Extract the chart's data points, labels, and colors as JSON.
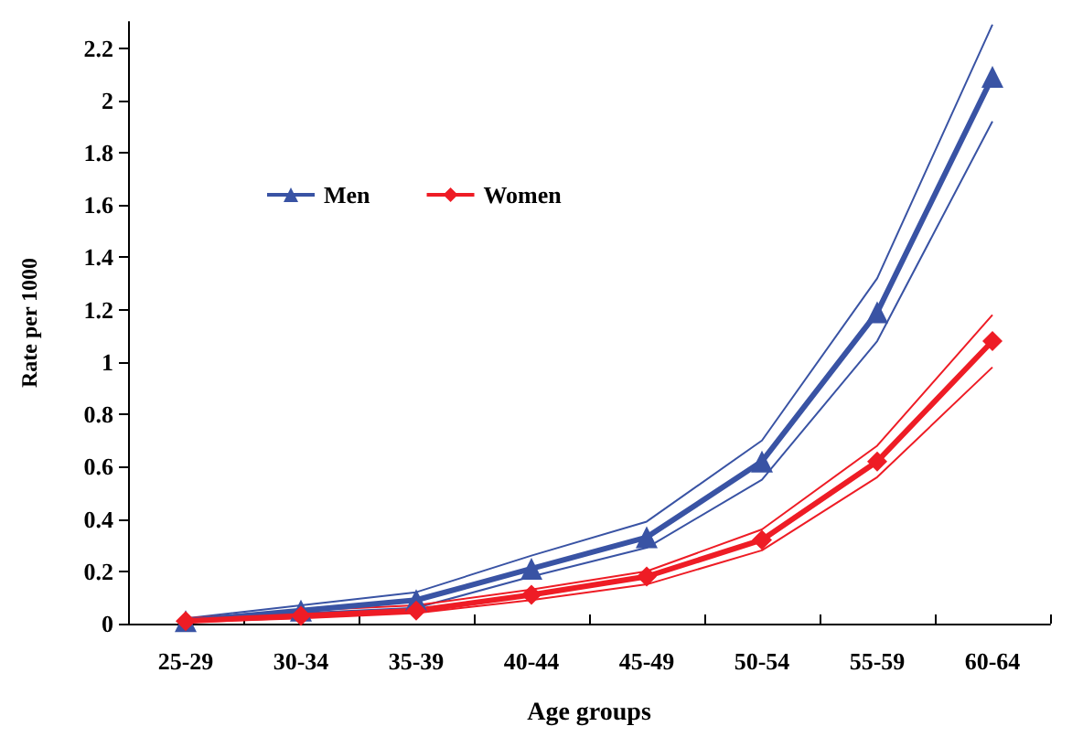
{
  "chart_data": {
    "type": "line",
    "xlabel": "Age groups",
    "ylabel": "Rate per 1000",
    "categories": [
      "25-29",
      "30-34",
      "35-39",
      "40-44",
      "45-49",
      "50-54",
      "55-59",
      "60-64"
    ],
    "series": [
      {
        "color": "#3953a4",
        "marker": "none",
        "values": [
          0.02,
          0.07,
          0.12,
          0.26,
          0.39,
          0.7,
          1.32,
          2.29
        ]
      },
      {
        "color": "#3953a4",
        "marker": "none",
        "values": [
          0.005,
          0.04,
          0.06,
          0.18,
          0.29,
          0.55,
          1.08,
          1.92
        ]
      },
      {
        "color": "#ee1c25",
        "marker": "none",
        "values": [
          0.02,
          0.05,
          0.07,
          0.13,
          0.2,
          0.36,
          0.68,
          1.18
        ]
      },
      {
        "color": "#ee1c25",
        "marker": "none",
        "values": [
          0.005,
          0.02,
          0.04,
          0.09,
          0.15,
          0.28,
          0.56,
          0.98
        ]
      },
      {
        "name": "Men",
        "color": "#3953a4",
        "marker": "triangle",
        "values": [
          0.01,
          0.05,
          0.09,
          0.21,
          0.33,
          0.62,
          1.19,
          2.09
        ]
      },
      {
        "name": "Women",
        "color": "#ee1c25",
        "marker": "diamond",
        "values": [
          0.01,
          0.03,
          0.05,
          0.11,
          0.18,
          0.32,
          0.62,
          1.08
        ]
      }
    ],
    "ylim": [
      0,
      2.3
    ],
    "yticks": [
      0,
      0.2,
      0.4,
      0.6,
      0.8,
      1,
      1.2,
      1.4,
      1.6,
      1.8,
      2,
      2.2
    ],
    "grid": false,
    "legend": "top left",
    "line_style": "solid"
  }
}
